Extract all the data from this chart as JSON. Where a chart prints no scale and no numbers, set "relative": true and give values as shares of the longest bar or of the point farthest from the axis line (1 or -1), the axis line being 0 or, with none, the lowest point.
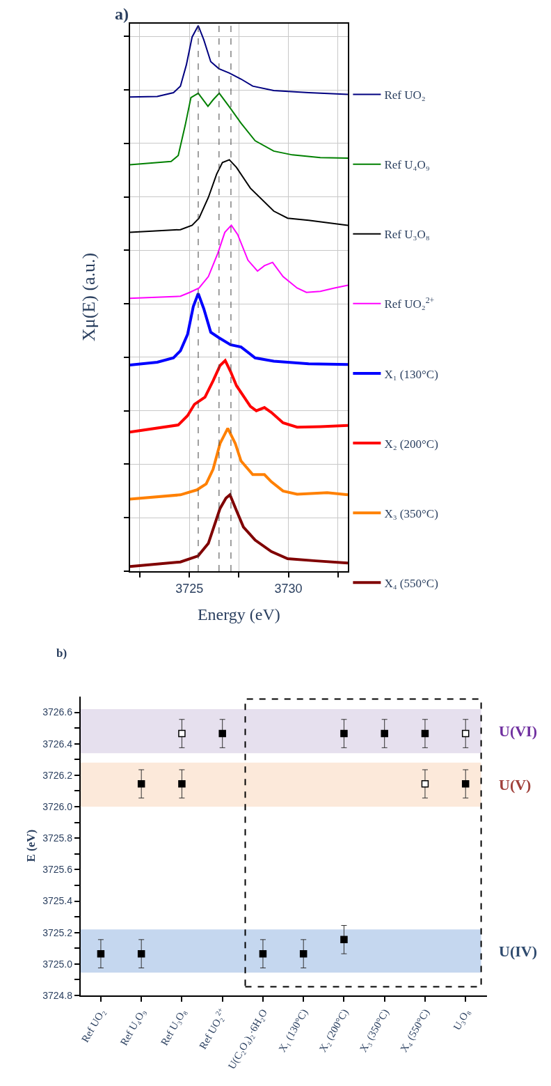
{
  "chart_data": [
    {
      "type": "line",
      "title": "a)",
      "xlabel": "Energy (eV)",
      "ylabel": "Xμ(E) (a.u.)",
      "relative": true,
      "xlim": [
        3722,
        3733
      ],
      "xticks": [
        {
          "value": 3722.5,
          "label": null
        },
        3725,
        {
          "value": 3727.5,
          "label": null
        },
        3730,
        {
          "value": 3732.5,
          "label": null
        }
      ],
      "grid": true,
      "legend": "right",
      "ref_lines": [
        {
          "axis": "x",
          "value": 3725.45,
          "color": "#404040",
          "line_style": "dashed"
        },
        {
          "axis": "x",
          "value": 3726.5,
          "color": "#404040",
          "line_style": "dashed"
        },
        {
          "axis": "x",
          "value": 3727.1,
          "color": "#404040",
          "line_style": "dashed"
        }
      ],
      "series": [
        {
          "name": "Ref UO₂",
          "color": "#000080",
          "x": [
            3722.0,
            3723.38,
            3724.2,
            3724.55,
            3724.85,
            3725.14,
            3725.45,
            3725.73,
            3726.08,
            3726.49,
            3727.02,
            3727.61,
            3728.2,
            3729.26,
            3731.02,
            3733.0
          ],
          "values": [
            0.869,
            0.87,
            0.877,
            0.889,
            0.928,
            0.979,
            1.0,
            0.974,
            0.934,
            0.921,
            0.913,
            0.902,
            0.889,
            0.881,
            0.877,
            0.874
          ]
        },
        {
          "name": "Ref U₄O₉",
          "color": "#008000",
          "x": [
            3722.0,
            3724.08,
            3724.44,
            3724.79,
            3725.08,
            3725.45,
            3725.94,
            3726.2,
            3726.51,
            3727.02,
            3727.61,
            3728.32,
            3729.26,
            3730.2,
            3731.61,
            3733.0
          ],
          "values": [
            0.745,
            0.751,
            0.762,
            0.817,
            0.868,
            0.876,
            0.852,
            0.864,
            0.876,
            0.851,
            0.821,
            0.789,
            0.77,
            0.763,
            0.758,
            0.757
          ]
        },
        {
          "name": "Ref U₃O₈",
          "color": "#000000",
          "x": [
            3722.0,
            3724.55,
            3725.14,
            3725.49,
            3725.96,
            3726.38,
            3726.67,
            3727.02,
            3727.38,
            3728.08,
            3729.26,
            3729.96,
            3731.02,
            3733.0
          ],
          "values": [
            0.621,
            0.626,
            0.634,
            0.647,
            0.685,
            0.728,
            0.749,
            0.754,
            0.74,
            0.702,
            0.66,
            0.647,
            0.643,
            0.634
          ]
        },
        {
          "name": "Ref UO₂$^{2+}$",
          "color": "#ff00ff",
          "x": [
            3722.0,
            3724.55,
            3725.02,
            3725.49,
            3725.96,
            3726.44,
            3726.79,
            3727.12,
            3727.44,
            3727.96,
            3728.44,
            3728.79,
            3729.2,
            3729.73,
            3730.44,
            3730.91,
            3731.61,
            3732.32,
            3733.0
          ],
          "values": [
            0.5,
            0.504,
            0.511,
            0.519,
            0.54,
            0.583,
            0.621,
            0.634,
            0.617,
            0.57,
            0.55,
            0.56,
            0.566,
            0.54,
            0.519,
            0.511,
            0.513,
            0.519,
            0.524
          ]
        },
        {
          "name": "X₁ (130°C)",
          "color": "#0000ff",
          "x": [
            3722.0,
            3723.38,
            3724.2,
            3724.55,
            3724.91,
            3725.2,
            3725.45,
            3725.73,
            3726.08,
            3726.49,
            3727.08,
            3727.61,
            3728.32,
            3729.26,
            3731.02,
            3733.0
          ],
          "values": [
            0.378,
            0.383,
            0.391,
            0.404,
            0.434,
            0.485,
            0.509,
            0.481,
            0.438,
            0.428,
            0.415,
            0.411,
            0.391,
            0.385,
            0.38,
            0.379
          ]
        },
        {
          "name": "X₂ (200°C)",
          "color": "#ff0000",
          "x": [
            3722.0,
            3724.44,
            3724.91,
            3725.26,
            3725.79,
            3726.2,
            3726.55,
            3726.81,
            3727.08,
            3727.38,
            3728.08,
            3728.38,
            3728.79,
            3729.14,
            3729.73,
            3730.44,
            3731.61,
            3733.0
          ],
          "values": [
            0.255,
            0.268,
            0.285,
            0.306,
            0.319,
            0.349,
            0.377,
            0.386,
            0.366,
            0.34,
            0.302,
            0.294,
            0.3,
            0.291,
            0.272,
            0.264,
            0.265,
            0.267
          ]
        },
        {
          "name": "X₃ (350°C)",
          "color": "#ff8000",
          "x": [
            3722.0,
            3724.55,
            3725.38,
            3725.85,
            3726.2,
            3726.55,
            3726.94,
            3727.32,
            3727.61,
            3728.2,
            3728.79,
            3729.14,
            3729.73,
            3730.44,
            3731.96,
            3733.0
          ],
          "values": [
            0.132,
            0.14,
            0.149,
            0.16,
            0.187,
            0.234,
            0.262,
            0.234,
            0.202,
            0.177,
            0.177,
            0.164,
            0.147,
            0.141,
            0.144,
            0.14
          ]
        },
        {
          "name": "X₄ (550°C)",
          "color": "#800000",
          "x": [
            3722.0,
            3724.55,
            3725.44,
            3725.96,
            3726.55,
            3726.85,
            3727.05,
            3727.38,
            3727.73,
            3728.32,
            3729.14,
            3729.96,
            3731.38,
            3733.0
          ],
          "values": [
            0.0085,
            0.017,
            0.028,
            0.051,
            0.115,
            0.134,
            0.14,
            0.111,
            0.081,
            0.057,
            0.036,
            0.023,
            0.019,
            0.015
          ]
        }
      ]
    },
    {
      "type": "scatter",
      "title": "b)",
      "ylabel": "E (eV)",
      "categories": [
        "Ref UO₂",
        "Ref U₄O₉",
        "Ref U₃O₈",
        "Ref UO₂$^{2+}$",
        "U(C₂O₄)₂·6H₂O",
        "X₁ (130°C)",
        "X₂ (200°C)",
        "X₃ (350°C)",
        "X₄ (550°C)",
        "U₃O₈"
      ],
      "ylim": [
        3724.8,
        3726.7
      ],
      "yticks": [
        3724.8,
        {
          "value": 3724.9,
          "label": null
        },
        {
          "value": 3725.0,
          "label": "3725.0"
        },
        {
          "value": 3725.1,
          "label": null
        },
        3725.2,
        {
          "value": 3725.3,
          "label": null
        },
        3725.4,
        {
          "value": 3725.5,
          "label": null
        },
        3725.6,
        {
          "value": 3725.7,
          "label": null
        },
        3725.8,
        {
          "value": 3725.9,
          "label": null
        },
        {
          "value": 3726.0,
          "label": "3726.0"
        },
        {
          "value": 3726.1,
          "label": null
        },
        3726.2,
        {
          "value": 3726.3,
          "label": null
        },
        3726.4,
        {
          "value": 3726.5,
          "label": null
        },
        3726.6
      ],
      "marker": "square",
      "grid": false,
      "legend": false,
      "bands": [
        {
          "axis": "y",
          "from": 3724.945,
          "to": 3725.22,
          "label": "U(IV)",
          "color": "#c5d7ef"
        },
        {
          "axis": "y",
          "from": 3726.0,
          "to": 3726.28,
          "label": "U(V)",
          "color": "#fce9da"
        },
        {
          "axis": "y",
          "from": 3726.34,
          "to": 3726.62,
          "label": "U(VI)",
          "color": "#e6e0ee"
        }
      ],
      "series": [
        {
          "color": "#000000",
          "x": [
            "Ref UO₂",
            "Ref U₄O₉",
            "Ref U₄O₉",
            "Ref U₃O₈",
            "Ref UO₂$^{2+}$",
            "U(C₂O₄)₂·6H₂O",
            "X₁ (130°C)",
            "X₂ (200°C)",
            "X₂ (200°C)",
            "X₃ (350°C)",
            "X₄ (550°C)",
            "U₃O₈"
          ],
          "values": [
            3725.065,
            3725.065,
            3726.145,
            3726.145,
            3726.465,
            3725.065,
            3725.065,
            3725.155,
            3726.465,
            3726.465,
            3726.465,
            3726.145
          ],
          "errors": [
            0.09,
            0.09,
            0.09,
            0.09,
            0.09,
            0.09,
            0.09,
            0.09,
            0.09,
            0.09,
            0.09,
            0.09
          ]
        },
        {
          "color": "#ffffff",
          "x": [
            "Ref U₃O₈",
            "X₄ (550°C)",
            "U₃O₈"
          ],
          "values": [
            3726.465,
            3726.145,
            3726.465
          ],
          "errors": [
            0.09,
            0.09,
            0.09
          ]
        }
      ]
    }
  ]
}
